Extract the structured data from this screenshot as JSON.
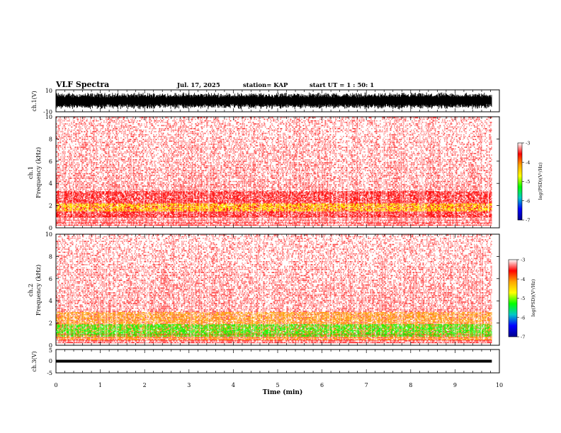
{
  "header": {
    "title": "VLF Spectra",
    "date": "Jul. 17, 2025",
    "station": "station= KAP",
    "start_ut": "start UT =  1 : 50: 1"
  },
  "axes": {
    "ch1_v_label": "ch.1(V)",
    "ch1_spec_label_a": "ch.1",
    "ch1_spec_label_b": "Frequency (kHz)",
    "ch2_spec_label_a": "ch.2",
    "ch2_spec_label_b": "Frequency (kHz)",
    "ch3_v_label": "ch.3(V)",
    "xlabel": "Time (min)"
  },
  "colorbar": {
    "label": "log(PSD)(V²/Hz)",
    "ticks": [
      "-3",
      "-4",
      "-5",
      "-6",
      "-7"
    ],
    "colors": [
      "#ffffff",
      "#ff0000",
      "#ffa500",
      "#ffff00",
      "#00ff00",
      "#00c8c8",
      "#0000ff",
      "#00008b"
    ]
  },
  "chart_data": [
    {
      "type": "line",
      "panel": "ch1_waveform",
      "ylabel": "ch.1(V)",
      "ylim": [
        -10,
        10
      ],
      "yticks": [
        "10",
        "-10"
      ],
      "xlim": [
        0,
        10
      ],
      "data_end_min": 9.83,
      "description_values": {
        "amplitude_envelope": [
          -8,
          8
        ]
      }
    },
    {
      "type": "heatmap",
      "panel": "ch1_spectrogram",
      "ylabel": "Frequency (kHz)",
      "ylim": [
        0,
        10
      ],
      "yticks": [
        "0",
        "2",
        "4",
        "6",
        "8",
        "10"
      ],
      "xlim": [
        0,
        10
      ],
      "data_end_min": 9.83,
      "bands": [
        {
          "from_khz": 1.0,
          "to_khz": 3.3,
          "log_psd": -4.2
        },
        {
          "from_khz": 1.5,
          "to_khz": 2.2,
          "log_psd": -4.6
        },
        {
          "from_khz": 3.3,
          "to_khz": 10.0,
          "log_psd": -3.5
        }
      ]
    },
    {
      "type": "heatmap",
      "panel": "ch2_spectrogram",
      "ylabel": "Frequency (kHz)",
      "ylim": [
        0,
        10
      ],
      "yticks": [
        "0",
        "2",
        "4",
        "6",
        "8",
        "10"
      ],
      "xlim": [
        0,
        10
      ],
      "data_end_min": 9.83,
      "bands": [
        {
          "from_khz": 0.5,
          "to_khz": 3.0,
          "log_psd": -4.3
        },
        {
          "from_khz": 0.8,
          "to_khz": 1.9,
          "log_psd": -5.0
        },
        {
          "from_khz": 3.0,
          "to_khz": 10.0,
          "log_psd": -3.5
        }
      ]
    },
    {
      "type": "line",
      "panel": "ch3_waveform",
      "ylabel": "ch.3(V)",
      "ylim": [
        -5,
        5
      ],
      "yticks": [
        "5",
        "0",
        "-5"
      ],
      "xlim": [
        0,
        10
      ],
      "data_end_min": 9.83,
      "xticks": [
        "0",
        "1",
        "2",
        "3",
        "4",
        "5",
        "6",
        "7",
        "8",
        "9",
        "10"
      ],
      "xlabel": "Time (min)",
      "description_values": {
        "amplitude_envelope": [
          -0.6,
          0.6
        ]
      }
    }
  ]
}
